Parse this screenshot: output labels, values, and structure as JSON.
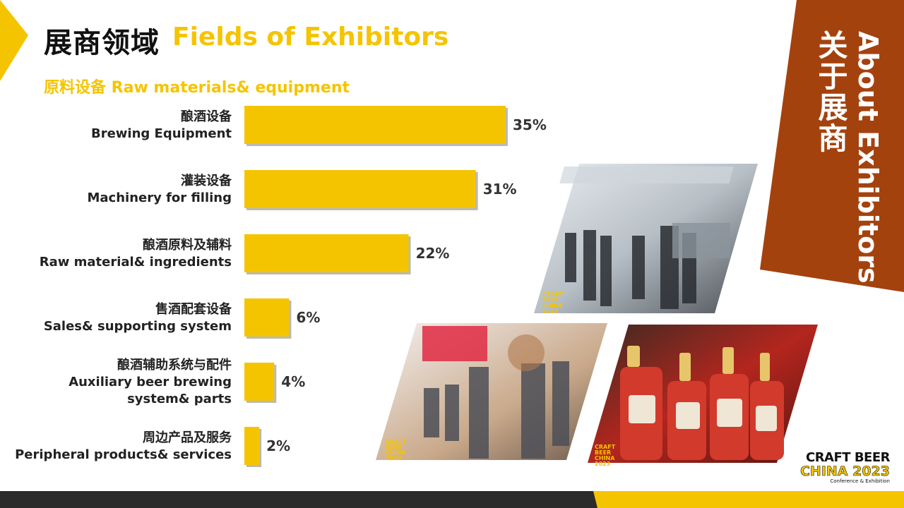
{
  "header": {
    "title_zh": "展商领域",
    "title_en": "Fields of Exhibitors",
    "subtitle": "原料设备 Raw materials& equipment"
  },
  "banner": {
    "zh": "关于展商",
    "en": "About Exhibitors"
  },
  "photos": [
    {
      "caption": "CRAFT BEER CHINA 2023"
    },
    {
      "caption": "CRAFT BEER CHINA 2023"
    },
    {
      "caption": "CRAFT BEER CHINA 2023"
    }
  ],
  "logo": {
    "line1": "CRAFT BEER",
    "line2": "CHINA 2023",
    "line3": "Conference & Exhibition"
  },
  "colors": {
    "accent": "#f5c400",
    "banner": "#a4420e",
    "footer_dark": "#2b2b2b"
  },
  "chart_data": {
    "type": "bar",
    "orientation": "horizontal",
    "categories": [
      [
        "酿酒设备",
        "Brewing Equipment"
      ],
      [
        "灌装设备",
        "Machinery for filling"
      ],
      [
        "酿酒原料及辅料",
        "Raw material& ingredients"
      ],
      [
        "售酒配套设备",
        "Sales& supporting system"
      ],
      [
        "酿酒辅助系统与配件",
        "Auxiliary beer brewing",
        "system& parts"
      ],
      [
        "周边产品及服务",
        "Peripheral products& services"
      ]
    ],
    "values": [
      35,
      31,
      22,
      6,
      4,
      2
    ],
    "value_labels": [
      "35%",
      "31%",
      "22%",
      "6%",
      "4%",
      "2%"
    ],
    "unit": "%",
    "xlim": [
      0,
      35
    ],
    "grid": false,
    "legend": "none"
  }
}
